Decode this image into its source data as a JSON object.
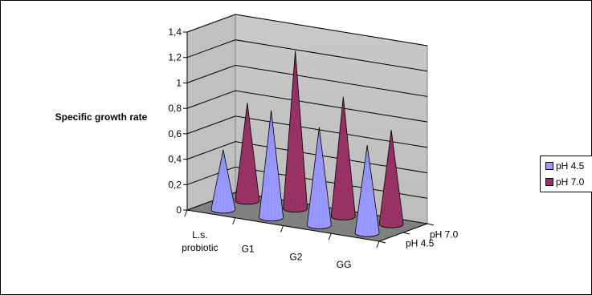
{
  "chart_data": {
    "type": "bar",
    "shape": "3d-cone",
    "title": "",
    "ylabel": "Specific growth rate",
    "xlabel": "",
    "categories": [
      "L.s.\nprobiotic",
      "G1",
      "G2",
      "GG"
    ],
    "depth_labels": [
      "pH 4.5",
      "pH 7.0"
    ],
    "yticks": [
      "0",
      "0,2",
      "0,4",
      "0,6",
      "0,8",
      "1",
      "1,2",
      "1,4"
    ],
    "ylim": [
      0,
      1.4
    ],
    "grid": true,
    "legend_position": "right",
    "series": [
      {
        "name": "pH 4.5",
        "color": "#9999ff",
        "values": [
          0.47,
          0.84,
          0.77,
          0.69
        ]
      },
      {
        "name": "pH 7.0",
        "color": "#993366",
        "values": [
          0.77,
          1.24,
          0.94,
          0.74
        ]
      }
    ]
  }
}
